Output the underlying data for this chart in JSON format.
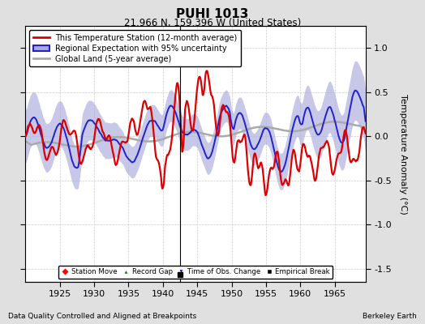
{
  "title": "PUHI 1013",
  "subtitle": "21.966 N, 159.396 W (United States)",
  "ylabel": "Temperature Anomaly (°C)",
  "xlabel_bottom_left": "Data Quality Controlled and Aligned at Breakpoints",
  "xlabel_bottom_right": "Berkeley Earth",
  "year_start": 1920.0,
  "year_end": 1969.5,
  "ylim": [
    -1.65,
    1.25
  ],
  "yticks": [
    -1.5,
    -1.0,
    -0.5,
    0.0,
    0.5,
    1.0
  ],
  "xticks": [
    1925,
    1930,
    1935,
    1940,
    1945,
    1950,
    1955,
    1960,
    1965
  ],
  "empirical_break_year": 1942.5,
  "bg_color": "#e0e0e0",
  "plot_bg_color": "#ffffff",
  "red_line_color": "#dd0000",
  "blue_line_color": "#2222cc",
  "blue_fill_color": "#aaaadd",
  "gray_line_color": "#aaaaaa",
  "legend_station": "This Temperature Station (12-month average)",
  "legend_regional": "Regional Expectation with 95% uncertainty",
  "legend_global": "Global Land (5-year average)",
  "grid_color": "#cccccc"
}
